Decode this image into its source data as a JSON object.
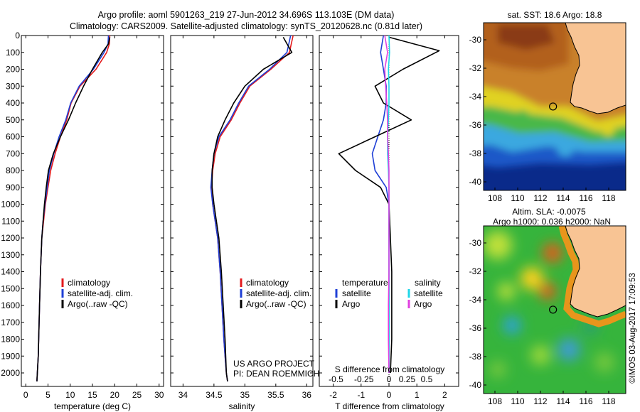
{
  "header": {
    "line1": "Argo profile: aoml 5901263_219 27-Jun-2012 34.696S 113.103E (DM data)",
    "line2": "Climatology: CARS2009. Satellite-adjusted climatology: synTS_20120628.nc (0.81d later)"
  },
  "credit": {
    "project": "US ARGO PROJECT",
    "pi": "PI: DEAN ROEMMICH",
    "stamp": "©IMOS 03-Aug-2017 17:09:53"
  },
  "colors": {
    "climatology": "#e41a1c",
    "satellite": "#1f3fd6",
    "argo": "#000000",
    "satellite_s": "#1fd6e8",
    "argo_s": "#e040e0"
  },
  "chart_data": [
    {
      "type": "line",
      "name": "temperature-profile",
      "xlabel": "temperature (deg C)",
      "ylabel": "",
      "xlim": [
        -1,
        31
      ],
      "ylim": [
        2080,
        0
      ],
      "xticks": [
        0,
        5,
        10,
        15,
        20,
        25,
        30
      ],
      "yticks": [
        0,
        100,
        200,
        300,
        400,
        500,
        600,
        700,
        800,
        900,
        1000,
        1100,
        1200,
        1300,
        1400,
        1500,
        1600,
        1700,
        1800,
        1900,
        2000
      ],
      "legend": [
        "climatology",
        "satellite-adj. clim.",
        "Argo(..raw -QC)"
      ],
      "series": [
        {
          "name": "climatology",
          "color": "#e41a1c",
          "x": [
            18.9,
            18.8,
            18.2,
            15.8,
            12.2,
            10.2,
            9.2,
            7.8,
            6.6,
            5.6,
            5.0,
            4.4,
            4.0,
            3.6,
            3.3,
            3.1,
            2.9,
            2.8,
            2.6,
            2.5
          ],
          "y": [
            0,
            50,
            100,
            200,
            300,
            400,
            500,
            600,
            700,
            800,
            900,
            1000,
            1100,
            1200,
            1400,
            1600,
            1800,
            1900,
            2000,
            2050
          ]
        },
        {
          "name": "satellite-adj. clim.",
          "color": "#1f3fd6",
          "x": [
            18.6,
            18.5,
            17.6,
            15.2,
            12.0,
            10.1,
            9.0,
            7.5,
            6.3,
            5.3,
            4.8,
            4.3,
            3.9,
            3.6,
            3.3,
            3.1,
            2.9,
            2.8,
            2.6,
            2.5
          ],
          "y": [
            0,
            50,
            100,
            200,
            300,
            400,
            500,
            600,
            700,
            800,
            900,
            1000,
            1100,
            1200,
            1400,
            1600,
            1800,
            1900,
            2000,
            2050
          ]
        },
        {
          "name": "Argo(..raw -QC)",
          "color": "#000000",
          "x": [
            18.9,
            18.6,
            17.2,
            15.0,
            13.0,
            11.2,
            9.6,
            7.8,
            6.2,
            5.1,
            4.6,
            4.2,
            3.9,
            3.6,
            3.3,
            3.1,
            2.9,
            2.8,
            2.6,
            2.5
          ],
          "y": [
            10,
            50,
            100,
            200,
            300,
            400,
            500,
            600,
            700,
            800,
            900,
            1000,
            1100,
            1200,
            1400,
            1600,
            1800,
            1900,
            2000,
            2050
          ]
        }
      ]
    },
    {
      "type": "line",
      "name": "salinity-profile",
      "xlabel": "salinity",
      "ylabel": "",
      "xlim": [
        33.8,
        36.1
      ],
      "ylim": [
        2080,
        0
      ],
      "xticks": [
        34,
        34.5,
        35,
        35.5,
        36
      ],
      "legend": [
        "climatology",
        "satellite-adj. clim.",
        "Argo(..raw -QC)"
      ],
      "series": [
        {
          "name": "climatology",
          "color": "#e41a1c",
          "x": [
            35.78,
            35.72,
            35.42,
            35.08,
            34.92,
            34.78,
            34.6,
            34.52,
            34.48,
            34.46,
            34.48,
            34.52,
            34.56,
            34.6,
            34.63,
            34.66,
            34.68,
            34.7,
            34.72
          ],
          "y": [
            0,
            100,
            200,
            300,
            400,
            500,
            600,
            700,
            800,
            900,
            1000,
            1100,
            1200,
            1400,
            1600,
            1800,
            1900,
            2000,
            2050
          ]
        },
        {
          "name": "satellite-adj. clim.",
          "color": "#1f3fd6",
          "x": [
            35.74,
            35.68,
            35.4,
            35.06,
            34.9,
            34.76,
            34.58,
            34.5,
            34.47,
            34.45,
            34.48,
            34.52,
            34.56,
            34.6,
            34.63,
            34.66,
            34.68,
            34.7,
            34.72
          ],
          "y": [
            0,
            100,
            200,
            300,
            400,
            500,
            600,
            700,
            800,
            900,
            1000,
            1100,
            1200,
            1400,
            1600,
            1800,
            1900,
            2000,
            2050
          ]
        },
        {
          "name": "Argo(..raw -QC)",
          "color": "#000000",
          "x": [
            35.62,
            35.76,
            35.3,
            35.0,
            34.82,
            34.68,
            34.56,
            34.5,
            34.47,
            34.47,
            34.5,
            34.54,
            34.58,
            34.62,
            34.65,
            34.68,
            34.69,
            34.7,
            34.72
          ],
          "y": [
            10,
            100,
            200,
            300,
            400,
            500,
            600,
            700,
            800,
            900,
            1000,
            1100,
            1200,
            1400,
            1600,
            1800,
            1900,
            2000,
            2050
          ]
        }
      ]
    },
    {
      "type": "line",
      "name": "difference-profile",
      "xlabel": "T difference from climatology",
      "xlabel2": "S difference from climatology",
      "xlim": [
        -2.5,
        2.5
      ],
      "ylim": [
        2080,
        0
      ],
      "xticks_t": [
        -2,
        -1,
        0,
        1,
        2
      ],
      "xticks_s": [
        -0.5,
        -0.25,
        0,
        0.25,
        0.5
      ],
      "legend_t": {
        "title": "temperature",
        "items": [
          "satellite",
          "Argo"
        ]
      },
      "legend_s": {
        "title": "salinity",
        "items": [
          "satellite",
          "Argo"
        ]
      },
      "series": [
        {
          "name": "temperature satellite",
          "color": "#1f3fd6",
          "x": [
            -0.2,
            -0.3,
            -0.2,
            -0.1,
            -0.1,
            -0.2,
            -0.4,
            -0.6,
            -0.5,
            -0.1,
            0.0,
            0.0,
            0.0,
            0.0,
            0.0,
            0.0
          ],
          "y": [
            0,
            100,
            200,
            300,
            400,
            500,
            600,
            700,
            800,
            900,
            1000,
            1200,
            1400,
            1600,
            1800,
            2000
          ]
        },
        {
          "name": "temperature Argo",
          "color": "#000000",
          "x": [
            0.0,
            1.8,
            0.5,
            -0.5,
            -0.2,
            0.8,
            -0.5,
            -1.8,
            -1.2,
            -0.3,
            0.0,
            0.05,
            0.1,
            0.1,
            0.1,
            0.05
          ],
          "y": [
            10,
            90,
            200,
            300,
            400,
            500,
            600,
            700,
            800,
            900,
            1000,
            1200,
            1400,
            1600,
            1800,
            2000
          ]
        },
        {
          "name": "salinity satellite",
          "color": "#1fd6e8",
          "x": [
            0.0,
            0.02,
            -0.02,
            0.0,
            0.0,
            -0.02,
            -0.05,
            -0.05,
            -0.02,
            0.0,
            0.0,
            0.0,
            0.0,
            0.0,
            0.0,
            0.0
          ],
          "y": [
            0,
            100,
            200,
            300,
            400,
            500,
            600,
            700,
            800,
            900,
            1000,
            1200,
            1400,
            1600,
            1800,
            2000
          ]
        },
        {
          "name": "salinity Argo",
          "color": "#e040e0",
          "x": [
            -0.15,
            -0.05,
            -0.15,
            -0.12,
            -0.08,
            -0.05,
            -0.05,
            -0.02,
            0.0,
            0.0,
            0.0,
            0.0,
            0.0,
            -0.02,
            -0.02,
            0.0
          ],
          "y": [
            0,
            100,
            200,
            300,
            400,
            500,
            600,
            700,
            800,
            900,
            1000,
            1200,
            1400,
            1600,
            1800,
            2000
          ]
        }
      ]
    },
    {
      "type": "heatmap",
      "name": "sst-map",
      "title": "sat. SST: 18.6  Argo: 18.8",
      "xlim": [
        107,
        119.5
      ],
      "ylim": [
        -40.6,
        -28.8
      ],
      "xticks": [
        108,
        110,
        112,
        114,
        116,
        118
      ],
      "yticks": [
        -30,
        -32,
        -34,
        -36,
        -38,
        -40
      ],
      "marker": {
        "x": 113.103,
        "y": -34.696
      }
    },
    {
      "type": "heatmap",
      "name": "sla-map",
      "title1": "Altim. SLA: -0.0075",
      "title2": "Argo h1000: 0.036 h2000: NaN",
      "xlim": [
        107,
        119.5
      ],
      "ylim": [
        -40.6,
        -28.8
      ],
      "xticks": [
        108,
        110,
        112,
        114,
        116,
        118
      ],
      "yticks": [
        -30,
        -32,
        -34,
        -36,
        -38,
        -40
      ],
      "marker": {
        "x": 113.103,
        "y": -34.696
      }
    }
  ]
}
